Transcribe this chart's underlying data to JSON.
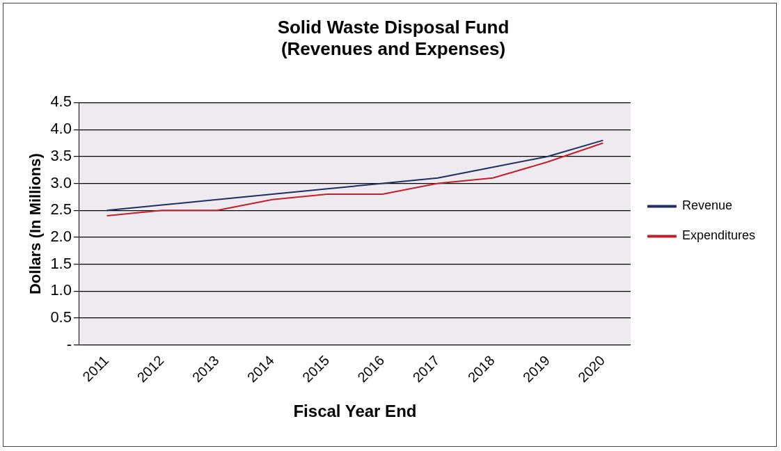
{
  "chart_data": {
    "type": "line",
    "title": [
      "Solid Waste Disposal Fund",
      "(Revenues and Expenses)"
    ],
    "xlabel": "Fiscal Year End",
    "ylabel": "Dollars (In Millions)",
    "categories": [
      "2011",
      "2012",
      "2013",
      "2014",
      "2015",
      "2016",
      "2017",
      "2018",
      "2019",
      "2020"
    ],
    "series": [
      {
        "name": "Revenue",
        "color": "#1f2f5f",
        "values": [
          2.5,
          2.6,
          2.7,
          2.8,
          2.9,
          3.0,
          3.1,
          3.3,
          3.5,
          3.8
        ]
      },
      {
        "name": "Expenditures",
        "color": "#c0202a",
        "values": [
          2.4,
          2.5,
          2.5,
          2.7,
          2.8,
          2.8,
          3.0,
          3.1,
          3.4,
          3.75
        ]
      }
    ],
    "ylim": [
      0,
      4.5
    ],
    "yticks": [
      {
        "value": 0,
        "label": "-"
      },
      0.5,
      {
        "value": 1,
        "label": "1.0"
      },
      1.5,
      {
        "value": 2,
        "label": "2.0"
      },
      2.5,
      {
        "value": 3,
        "label": "3.0"
      },
      3.5,
      {
        "value": 4,
        "label": "4.0"
      },
      4.5
    ],
    "grid": "y",
    "legend": "right",
    "marker": "none",
    "line_style": "solid"
  }
}
